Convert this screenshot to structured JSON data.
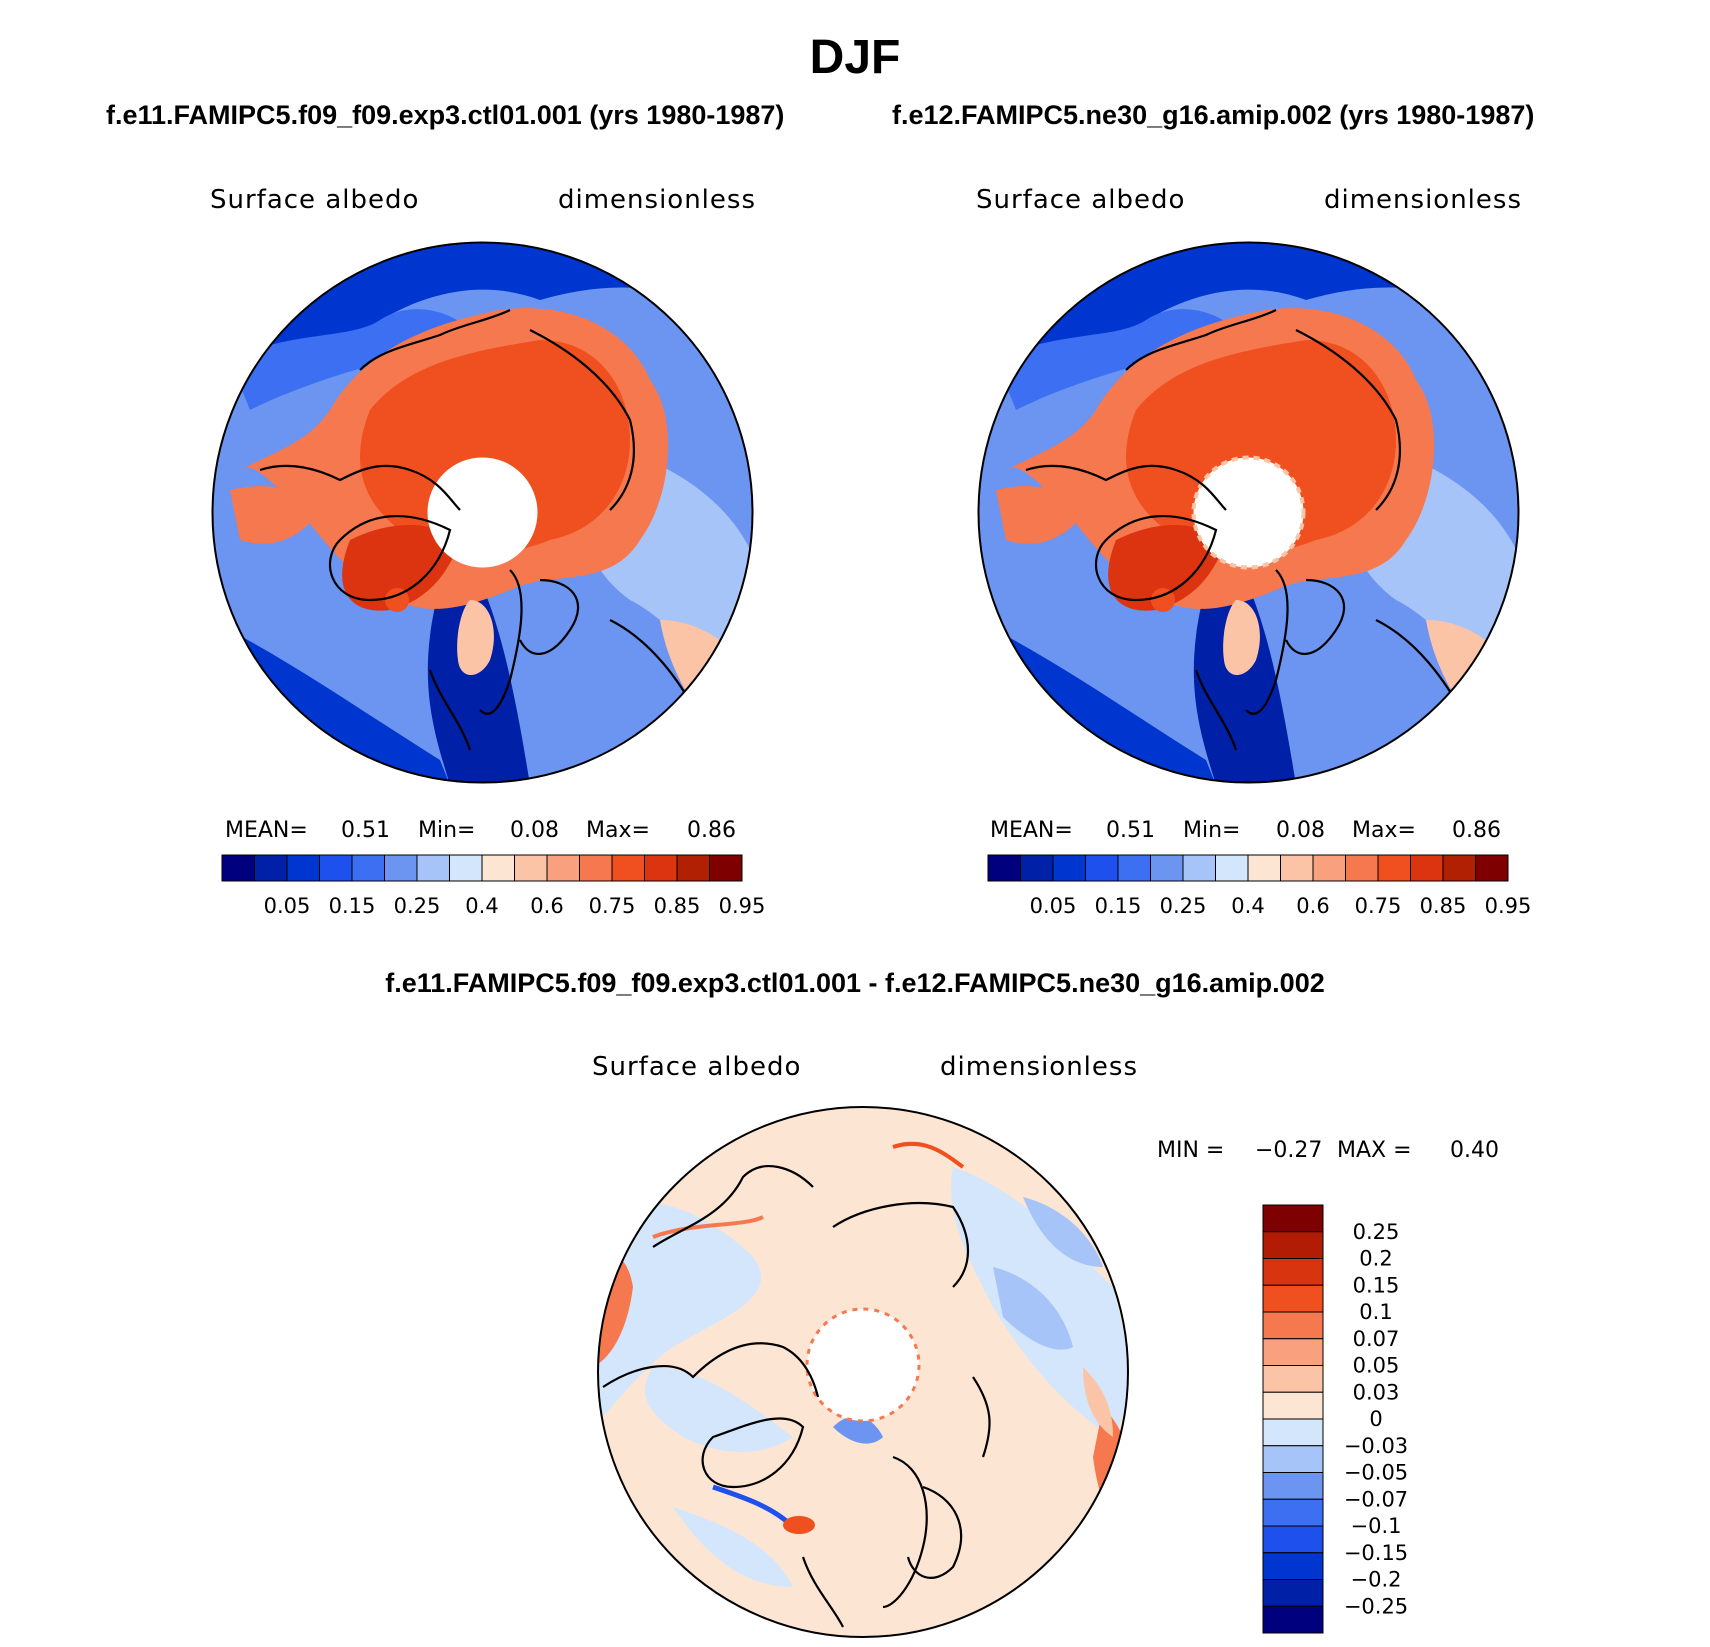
{
  "title": "DJF",
  "panels": [
    {
      "case_title": "f.e11.FAMIPC5.f09_f09.exp3.ctl01.001 (yrs 1980-1987)",
      "variable": "Surface albedo",
      "units": "dimensionless",
      "stats": {
        "mean_label": "MEAN=",
        "mean": "0.51",
        "min_label": "Min=",
        "min": "0.08",
        "max_label": "Max=",
        "max": "0.86"
      }
    },
    {
      "case_title": "f.e12.FAMIPC5.ne30_g16.amip.002 (yrs 1980-1987)",
      "variable": "Surface albedo",
      "units": "dimensionless",
      "stats": {
        "mean_label": "MEAN=",
        "mean": "0.51",
        "min_label": "Min=",
        "min": "0.08",
        "max_label": "Max=",
        "max": "0.86"
      }
    }
  ],
  "difference": {
    "title": "f.e11.FAMIPC5.f09_f09.exp3.ctl01.001 - f.e12.FAMIPC5.ne30_g16.amip.002",
    "variable": "Surface albedo",
    "units": "dimensionless",
    "min_label": "MIN =",
    "min": "−0.27",
    "max_label": "MAX =",
    "max": "0.40"
  },
  "colorbars": {
    "absolute": {
      "colors": [
        "#00007f",
        "#0020a8",
        "#0036d0",
        "#1e50ee",
        "#3c6ff2",
        "#6b95f0",
        "#a7c4f8",
        "#d4e6fb",
        "#fde5d4",
        "#fcc4a6",
        "#f9a07e",
        "#f6784f",
        "#f0501f",
        "#dc3410",
        "#b22004",
        "#7f0000"
      ],
      "tick_labels": [
        "0.05",
        "0.15",
        "0.25",
        "0.4",
        "0.6",
        "0.75",
        "0.85",
        "0.95"
      ]
    },
    "difference": {
      "colors": [
        "#7f0000",
        "#b21c04",
        "#d93410",
        "#f0501f",
        "#f6784f",
        "#f9a07e",
        "#fcc4a6",
        "#fde5d4",
        "#d4e6fb",
        "#a7c4f8",
        "#6b95f0",
        "#3c6ff2",
        "#1e50ee",
        "#0036d0",
        "#0020a8",
        "#00007f"
      ],
      "tick_labels": [
        "0.25",
        "0.2",
        "0.15",
        "0.1",
        "0.07",
        "0.05",
        "0.03",
        "0",
        "−0.03",
        "−0.05",
        "−0.07",
        "−0.1",
        "−0.15",
        "−0.2",
        "−0.25"
      ]
    }
  }
}
